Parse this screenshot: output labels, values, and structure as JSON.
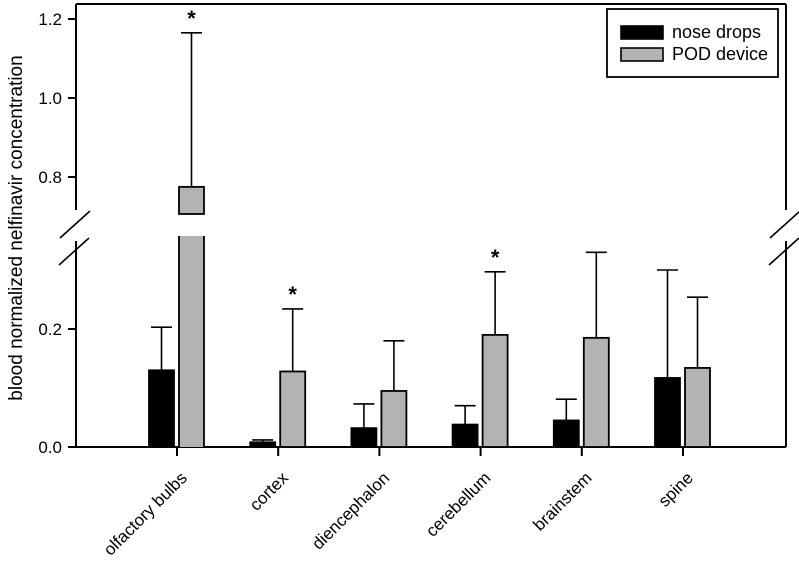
{
  "figure": {
    "background": "#ffffff",
    "frame_color": "#000000"
  },
  "chart_data": {
    "type": "bar",
    "title": "",
    "xlabel": "",
    "ylabel": "blood normalized nelfinavir concentration",
    "categories": [
      "olfactory bulbs",
      "cortex",
      "diencephalon",
      "cerebellum",
      "brainstem",
      "spine"
    ],
    "series": [
      {
        "name": "nose drops",
        "color": "#000000",
        "values": [
          0.13,
          0.008,
          0.032,
          0.038,
          0.045,
          0.117
        ],
        "error_caps": [
          0.203,
          0.012,
          0.073,
          0.07,
          0.081,
          0.3
        ],
        "significant": [
          false,
          false,
          false,
          false,
          false,
          false
        ]
      },
      {
        "name": "POD device",
        "color": "#b3b3b3",
        "values": [
          0.775,
          0.128,
          0.095,
          0.19,
          0.185,
          0.134
        ],
        "error_caps": [
          1.165,
          0.234,
          0.18,
          0.297,
          0.33,
          0.254
        ],
        "significant": [
          true,
          true,
          false,
          true,
          false,
          false
        ]
      }
    ],
    "axis": {
      "y_lower_ticks": [
        "0.0",
        "0.2"
      ],
      "y_lower_tick_values": [
        0.0,
        0.2
      ],
      "y_upper_ticks": [
        "0.8",
        "1.0",
        "1.2"
      ],
      "y_upper_tick_values": [
        0.8,
        1.0,
        1.2
      ],
      "axis_break": true,
      "break_between_values": [
        0.34,
        0.71
      ],
      "ylim_lower_segment": [
        0.0,
        0.34
      ],
      "ylim_upper_segment": [
        0.71,
        1.24
      ],
      "grid": false
    },
    "legend": {
      "position": "top-right",
      "entries": [
        {
          "label": "nose drops",
          "color": "#000000"
        },
        {
          "label": "POD device",
          "color": "#b3b3b3"
        }
      ]
    },
    "significance_marker": "*"
  }
}
